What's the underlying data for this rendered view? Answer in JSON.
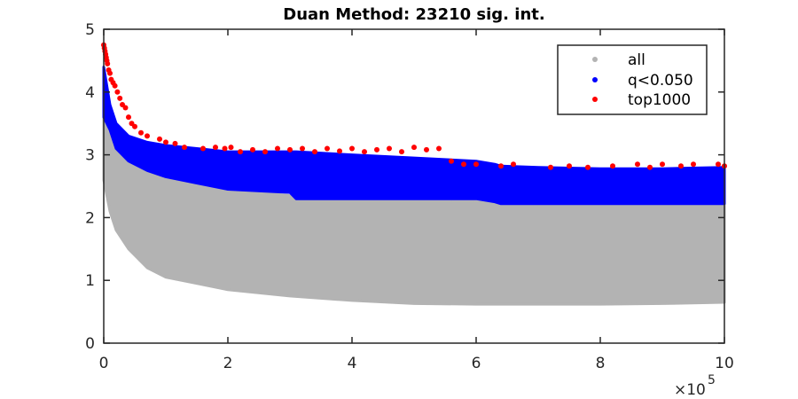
{
  "chart_data": {
    "type": "scatter",
    "title": "Duan Method: 23210 sig. int.",
    "xlabel": "",
    "ylabel": "",
    "xlim": [
      0,
      1000000
    ],
    "ylim": [
      0,
      5
    ],
    "x_ticks": [
      0,
      200000,
      400000,
      600000,
      800000,
      1000000
    ],
    "x_tick_labels": [
      "0",
      "2",
      "4",
      "6",
      "8",
      "10"
    ],
    "x_multiplier": "×10",
    "x_multiplier_exponent": "5",
    "y_ticks": [
      0,
      1,
      2,
      3,
      4,
      5
    ],
    "y_tick_labels": [
      "0",
      "1",
      "2",
      "3",
      "4",
      "5"
    ],
    "grid": false,
    "legend_position": "top-right",
    "legend": [
      "all",
      "q<0.050",
      "top1000"
    ],
    "series": [
      {
        "name": "all",
        "color": "#b3b3b3",
        "envelope": {
          "x": [
            0,
            10000,
            20000,
            40000,
            70000,
            100000,
            150000,
            200000,
            300000,
            400000,
            500000,
            600000,
            700000,
            800000,
            900000,
            1000000
          ],
          "lower": [
            2.6,
            2.1,
            1.8,
            1.5,
            1.2,
            1.05,
            0.95,
            0.85,
            0.75,
            0.68,
            0.63,
            0.62,
            0.62,
            0.62,
            0.63,
            0.65
          ],
          "upper": [
            4.3,
            3.5,
            3.1,
            2.9,
            2.8,
            2.7,
            2.55,
            2.45,
            2.35,
            2.3,
            2.3,
            2.28,
            2.2,
            2.2,
            2.2,
            2.2
          ]
        }
      },
      {
        "name": "q<0.050",
        "color": "#0000ff",
        "envelope": {
          "x": [
            0,
            10000,
            20000,
            40000,
            70000,
            100000,
            150000,
            200000,
            300000,
            310000,
            400000,
            500000,
            600000,
            630000,
            640000,
            700000,
            800000,
            900000,
            1000000
          ],
          "lower": [
            3.6,
            3.4,
            3.1,
            2.9,
            2.75,
            2.65,
            2.55,
            2.45,
            2.4,
            2.3,
            2.3,
            2.3,
            2.3,
            2.25,
            2.22,
            2.22,
            2.22,
            2.22,
            2.22
          ],
          "upper": [
            4.4,
            3.8,
            3.5,
            3.3,
            3.2,
            3.15,
            3.1,
            3.05,
            3.05,
            3.05,
            3.0,
            2.95,
            2.9,
            2.85,
            2.82,
            2.8,
            2.78,
            2.78,
            2.8
          ]
        }
      },
      {
        "name": "top1000",
        "color": "#ff0000",
        "points": [
          [
            0,
            4.75
          ],
          [
            1000,
            4.7
          ],
          [
            2000,
            4.65
          ],
          [
            3000,
            4.6
          ],
          [
            4000,
            4.55
          ],
          [
            5000,
            4.5
          ],
          [
            6000,
            4.45
          ],
          [
            8000,
            4.35
          ],
          [
            10000,
            4.3
          ],
          [
            12000,
            4.2
          ],
          [
            15000,
            4.15
          ],
          [
            18000,
            4.1
          ],
          [
            22000,
            4.0
          ],
          [
            26000,
            3.9
          ],
          [
            30000,
            3.8
          ],
          [
            35000,
            3.75
          ],
          [
            40000,
            3.6
          ],
          [
            45000,
            3.5
          ],
          [
            50000,
            3.45
          ],
          [
            60000,
            3.35
          ],
          [
            70000,
            3.3
          ],
          [
            90000,
            3.25
          ],
          [
            100000,
            3.2
          ],
          [
            115000,
            3.18
          ],
          [
            130000,
            3.12
          ],
          [
            160000,
            3.1
          ],
          [
            180000,
            3.12
          ],
          [
            195000,
            3.1
          ],
          [
            205000,
            3.12
          ],
          [
            220000,
            3.05
          ],
          [
            240000,
            3.08
          ],
          [
            260000,
            3.05
          ],
          [
            280000,
            3.1
          ],
          [
            300000,
            3.08
          ],
          [
            320000,
            3.1
          ],
          [
            340000,
            3.05
          ],
          [
            360000,
            3.1
          ],
          [
            380000,
            3.06
          ],
          [
            400000,
            3.1
          ],
          [
            420000,
            3.05
          ],
          [
            440000,
            3.08
          ],
          [
            460000,
            3.1
          ],
          [
            480000,
            3.05
          ],
          [
            500000,
            3.12
          ],
          [
            520000,
            3.08
          ],
          [
            540000,
            3.1
          ],
          [
            560000,
            2.9
          ],
          [
            580000,
            2.85
          ],
          [
            600000,
            2.85
          ],
          [
            640000,
            2.82
          ],
          [
            660000,
            2.85
          ],
          [
            720000,
            2.8
          ],
          [
            750000,
            2.82
          ],
          [
            780000,
            2.8
          ],
          [
            820000,
            2.82
          ],
          [
            860000,
            2.85
          ],
          [
            880000,
            2.8
          ],
          [
            900000,
            2.85
          ],
          [
            930000,
            2.82
          ],
          [
            950000,
            2.85
          ],
          [
            990000,
            2.85
          ],
          [
            1000000,
            2.82
          ]
        ]
      }
    ]
  }
}
